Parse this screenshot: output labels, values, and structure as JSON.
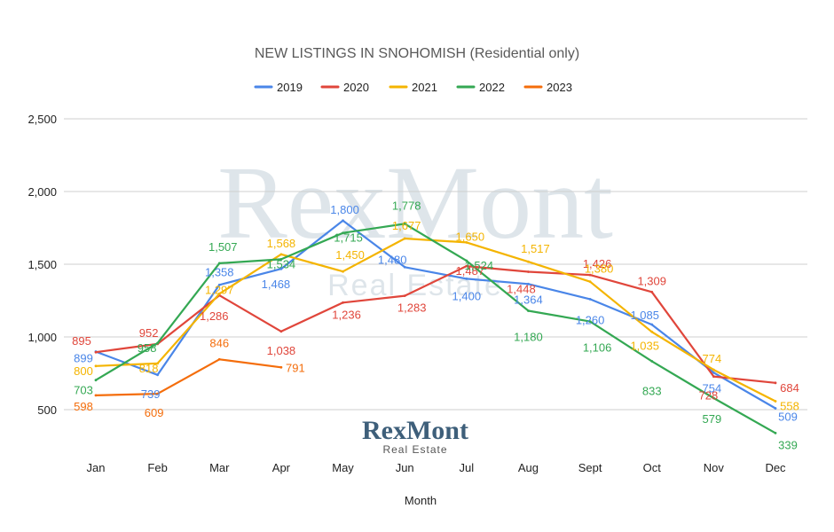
{
  "chart_data": {
    "type": "line",
    "title": "NEW LISTINGS IN SNOHOMISH  (Residential only)",
    "xlabel": "Month",
    "ylabel": "",
    "ylim": [
      400,
      2500
    ],
    "yticks": [
      500,
      1000,
      1500,
      2000,
      2500
    ],
    "ytick_labels": [
      "500",
      "1,000",
      "1,500",
      "2,000",
      "2,500"
    ],
    "grid": true,
    "legend_position": "top",
    "categories": [
      "Jan",
      "Feb",
      "Mar",
      "Apr",
      "May",
      "Jun",
      "Jul",
      "Aug",
      "Sept",
      "Oct",
      "Nov",
      "Dec"
    ],
    "series": [
      {
        "name": "2019",
        "color": "#4a86e8",
        "values": [
          899,
          739,
          1358,
          1468,
          1800,
          1480,
          1400,
          1364,
          1260,
          1085,
          754,
          509
        ]
      },
      {
        "name": "2020",
        "color": "#e0463b",
        "values": [
          895,
          952,
          1286,
          1038,
          1236,
          1283,
          1487,
          1448,
          1426,
          1309,
          728,
          684
        ]
      },
      {
        "name": "2021",
        "color": "#f4b400",
        "values": [
          800,
          818,
          1297,
          1568,
          1450,
          1677,
          1650,
          1517,
          1380,
          1035,
          774,
          558
        ]
      },
      {
        "name": "2022",
        "color": "#34a853",
        "values": [
          703,
          958,
          1507,
          1534,
          1715,
          1778,
          1524,
          1180,
          1106,
          833,
          579,
          339
        ]
      },
      {
        "name": "2023",
        "color": "#f46d0b",
        "values": [
          598,
          609,
          846,
          791,
          null,
          null,
          null,
          null,
          null,
          null,
          null,
          null
        ]
      }
    ],
    "data_labels": [
      [
        "899",
        "739",
        "1,358",
        "1,468",
        "1,800",
        "1,480",
        "1,400",
        "1,364",
        "1,260",
        "1,085",
        "754",
        "509"
      ],
      [
        "895",
        "952",
        "1,286",
        "1,038",
        "1,236",
        "1,283",
        "1,487",
        "1,448",
        "1,426",
        "1,309",
        "728",
        "684"
      ],
      [
        "800",
        "818",
        "1,297",
        "1,568",
        "1,450",
        "1,677",
        "1,650",
        "1,517",
        "1,380",
        "1,035",
        "774",
        "558"
      ],
      [
        "703",
        "958",
        "1,507",
        "1,534",
        "1,715",
        "1,778",
        "1,524",
        "1,180",
        "1,106",
        "833",
        "579",
        "339"
      ],
      [
        "598",
        "609",
        "846",
        "791",
        "",
        "",
        "",
        "",
        "",
        "",
        "",
        ""
      ]
    ]
  },
  "watermark": {
    "big": "RexMont",
    "small": "Real Estate"
  },
  "logo": {
    "name": "RexMont",
    "tagline": "Real Estate"
  }
}
